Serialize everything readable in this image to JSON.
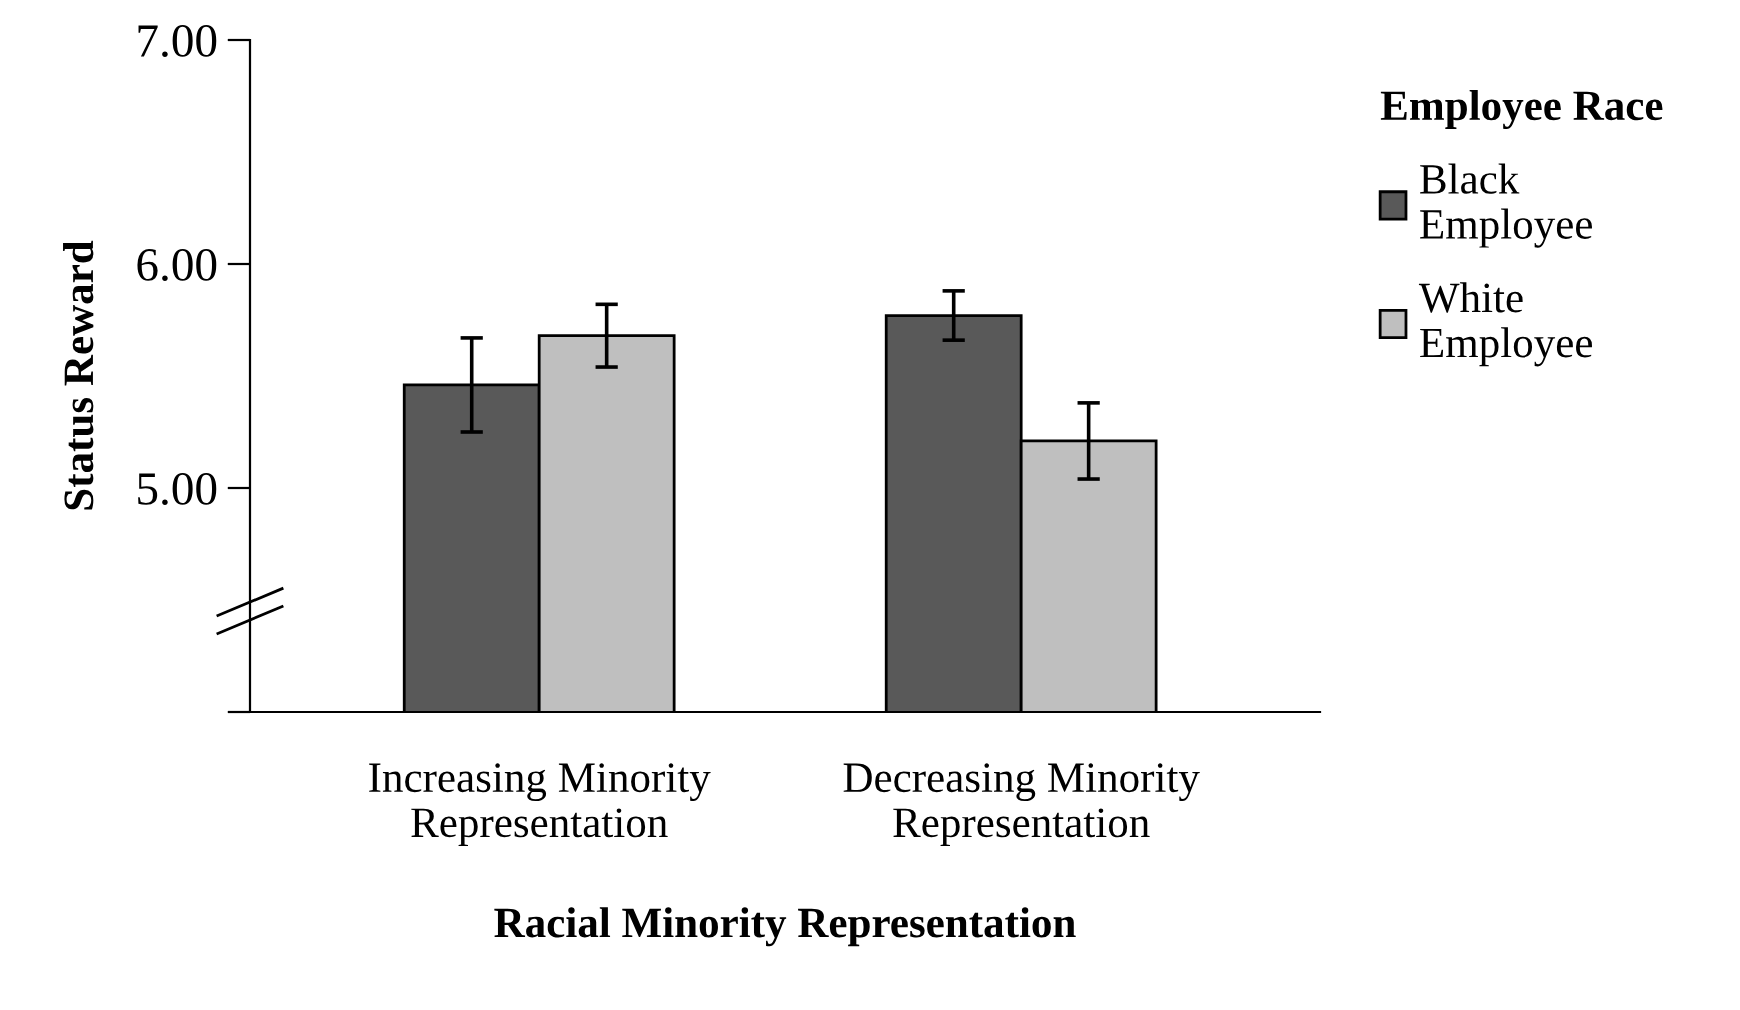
{
  "chart_data": {
    "type": "bar",
    "xlabel": "Racial Minority Representation",
    "ylabel": "Status Reward",
    "legend_title": "Employee Race",
    "categories": [
      "Increasing Minority\nRepresentation",
      "Decreasing Minority\nRepresentation"
    ],
    "series": [
      {
        "name": "Black\nEmployee",
        "color": "#595959",
        "values": [
          5.46,
          5.77
        ],
        "errors": [
          0.21,
          0.11
        ]
      },
      {
        "name": "White\nEmployee",
        "color": "#bfbfbf",
        "values": [
          5.68,
          5.21
        ],
        "errors": [
          0.14,
          0.17
        ]
      }
    ],
    "ylim": [
      4,
      7
    ],
    "yticks": [
      {
        "value": 4,
        "label": null
      },
      {
        "value": 5,
        "label": "5.00"
      },
      {
        "value": 6,
        "label": "6.00"
      },
      {
        "value": 7,
        "label": "7.00"
      }
    ],
    "legend": "right",
    "grid": false
  }
}
